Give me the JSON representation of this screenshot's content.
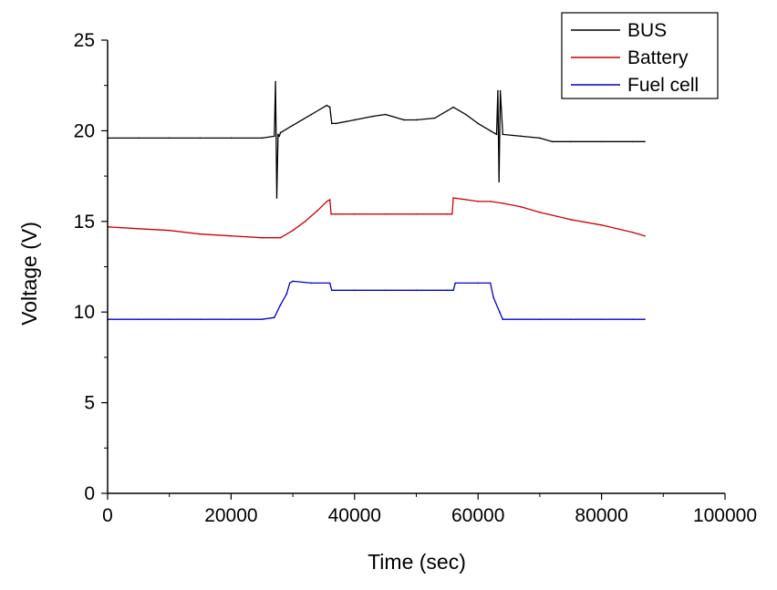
{
  "chart_data": {
    "type": "line",
    "title": "",
    "xlabel": "Time (sec)",
    "ylabel": "Voltage (V)",
    "xlim": [
      0,
      100000
    ],
    "ylim": [
      0,
      25
    ],
    "xticks": [
      0,
      20000,
      40000,
      60000,
      80000,
      100000
    ],
    "yticks": [
      0,
      5,
      10,
      15,
      20,
      25
    ],
    "legend_position": "top-right",
    "series": [
      {
        "name": "BUS",
        "color": "#000000",
        "x": [
          0,
          5000,
          10000,
          15000,
          20000,
          25000,
          27000,
          27200,
          27400,
          27600,
          27800,
          28000,
          30000,
          33000,
          35500,
          36000,
          36300,
          37000,
          40000,
          43000,
          45000,
          48000,
          50000,
          53000,
          55000,
          56000,
          58000,
          60000,
          62000,
          63000,
          63200,
          63400,
          63600,
          64000,
          67000,
          70000,
          72000,
          75000,
          80000,
          85000,
          87000
        ],
        "y": [
          19.6,
          19.6,
          19.6,
          19.6,
          19.6,
          19.6,
          19.7,
          22.7,
          16.3,
          19.8,
          19.7,
          19.9,
          20.3,
          20.9,
          21.4,
          21.3,
          20.4,
          20.4,
          20.6,
          20.8,
          20.9,
          20.6,
          20.6,
          20.7,
          21.1,
          21.3,
          20.9,
          20.4,
          20.0,
          19.8,
          22.2,
          17.2,
          22.2,
          19.8,
          19.7,
          19.6,
          19.4,
          19.4,
          19.4,
          19.4,
          19.4
        ]
      },
      {
        "name": "Battery",
        "color": "#cc0000",
        "x": [
          0,
          5000,
          10000,
          15000,
          20000,
          25000,
          28000,
          30000,
          32000,
          34000,
          35500,
          36000,
          36200,
          40000,
          45000,
          50000,
          55000,
          55800,
          56000,
          58000,
          60000,
          62000,
          64000,
          67000,
          70000,
          75000,
          80000,
          85000,
          87000
        ],
        "y": [
          14.7,
          14.6,
          14.5,
          14.3,
          14.2,
          14.1,
          14.1,
          14.5,
          15.0,
          15.6,
          16.1,
          16.2,
          15.4,
          15.4,
          15.4,
          15.4,
          15.4,
          15.4,
          16.3,
          16.2,
          16.1,
          16.1,
          16.0,
          15.8,
          15.5,
          15.1,
          14.8,
          14.4,
          14.2
        ]
      },
      {
        "name": "Fuel cell",
        "color": "#0000cc",
        "x": [
          0,
          5000,
          10000,
          15000,
          20000,
          25000,
          27000,
          28000,
          29000,
          29500,
          30000,
          33000,
          36000,
          36300,
          40000,
          45000,
          50000,
          55000,
          56000,
          56300,
          60000,
          62000,
          62500,
          63500,
          64000,
          70000,
          75000,
          80000,
          85000,
          87000
        ],
        "y": [
          9.6,
          9.6,
          9.6,
          9.6,
          9.6,
          9.6,
          9.7,
          10.4,
          11.0,
          11.6,
          11.7,
          11.6,
          11.6,
          11.2,
          11.2,
          11.2,
          11.2,
          11.2,
          11.2,
          11.6,
          11.6,
          11.6,
          10.8,
          10.0,
          9.6,
          9.6,
          9.6,
          9.6,
          9.6,
          9.6
        ]
      }
    ]
  }
}
